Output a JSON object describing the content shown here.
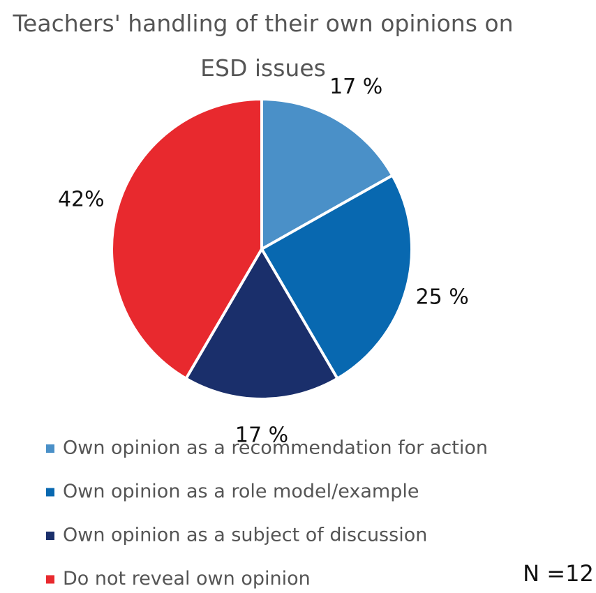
{
  "chart_data": {
    "type": "pie",
    "title": "Teachers' handling of their own opinions on ESD issues",
    "categories": [
      "Own opinion as a recommendation for action",
      "Own opinion as a role model/example",
      "Own opinion as a subject of discussion",
      "Do not reveal own opinion"
    ],
    "values": [
      17,
      25,
      17,
      42
    ],
    "value_labels": [
      "17 %",
      "25 %",
      "17 %",
      "42%"
    ],
    "colors": [
      "#4a90c8",
      "#0868b0",
      "#1a2f6b",
      "#e8292e"
    ],
    "annotation": "N =12"
  }
}
